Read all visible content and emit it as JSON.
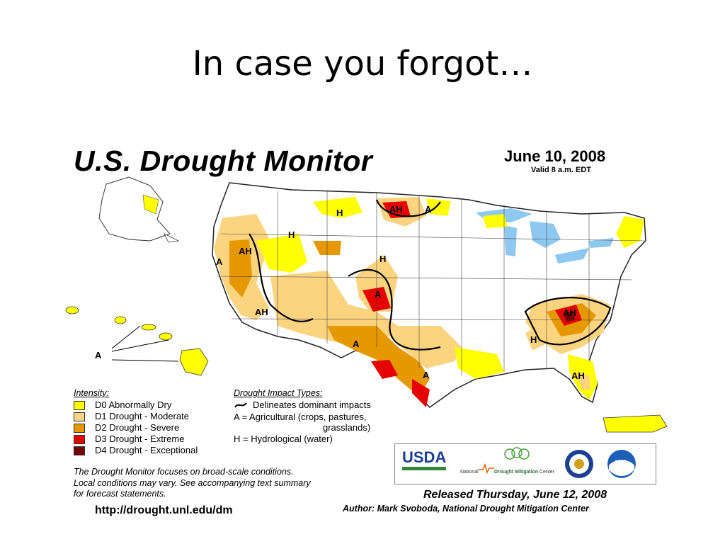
{
  "slide": {
    "title": "In case you forgot…"
  },
  "map": {
    "title": "U.S. Drought Monitor",
    "date": "June 10, 2008",
    "valid": "Valid 8 a.m. EDT",
    "impact_labels": [
      "H",
      "AH",
      "A",
      "H",
      "AH",
      "A",
      "AH",
      "H",
      "A",
      "A",
      "A",
      "AH",
      "H",
      "AH",
      "A"
    ],
    "legend": {
      "intensity_heading": "Intensity:",
      "intensity": [
        {
          "label": "D0 Abnormally Dry",
          "color": "#ffff00"
        },
        {
          "label": "D1 Drought - Moderate",
          "color": "#fcd37f"
        },
        {
          "label": "D2 Drought - Severe",
          "color": "#e69800"
        },
        {
          "label": "D3 Drought - Extreme",
          "color": "#e60000"
        },
        {
          "label": "D4 Drought - Exceptional",
          "color": "#730000"
        }
      ],
      "impact_heading": "Drought Impact Types:",
      "impact": [
        "Delineates dominant impacts",
        "A = Agricultural (crops, pastures,",
        "grasslands)",
        "H = Hydrological (water)"
      ]
    },
    "notes": [
      "The Drought Monitor focuses on broad-scale conditions.",
      "Local conditions may vary. See accompanying text summary",
      "for forecast statements."
    ],
    "url": "http://drought.unl.edu/dm",
    "logos": {
      "usda": "USDA",
      "ndmc_prefix": "National",
      "ndmc_name": "Drought Mitigation",
      "ndmc_suffix": "Center",
      "noaa": "noaa"
    },
    "released": "Released Thursday, June 12, 2008",
    "author": "Author: Mark Svoboda, National Drought Mitigation Center"
  },
  "colors": {
    "d0": "#ffff00",
    "d1": "#fcd37f",
    "d2": "#e69800",
    "d3": "#e60000",
    "d4": "#730000",
    "water": "#8ec8f0"
  }
}
